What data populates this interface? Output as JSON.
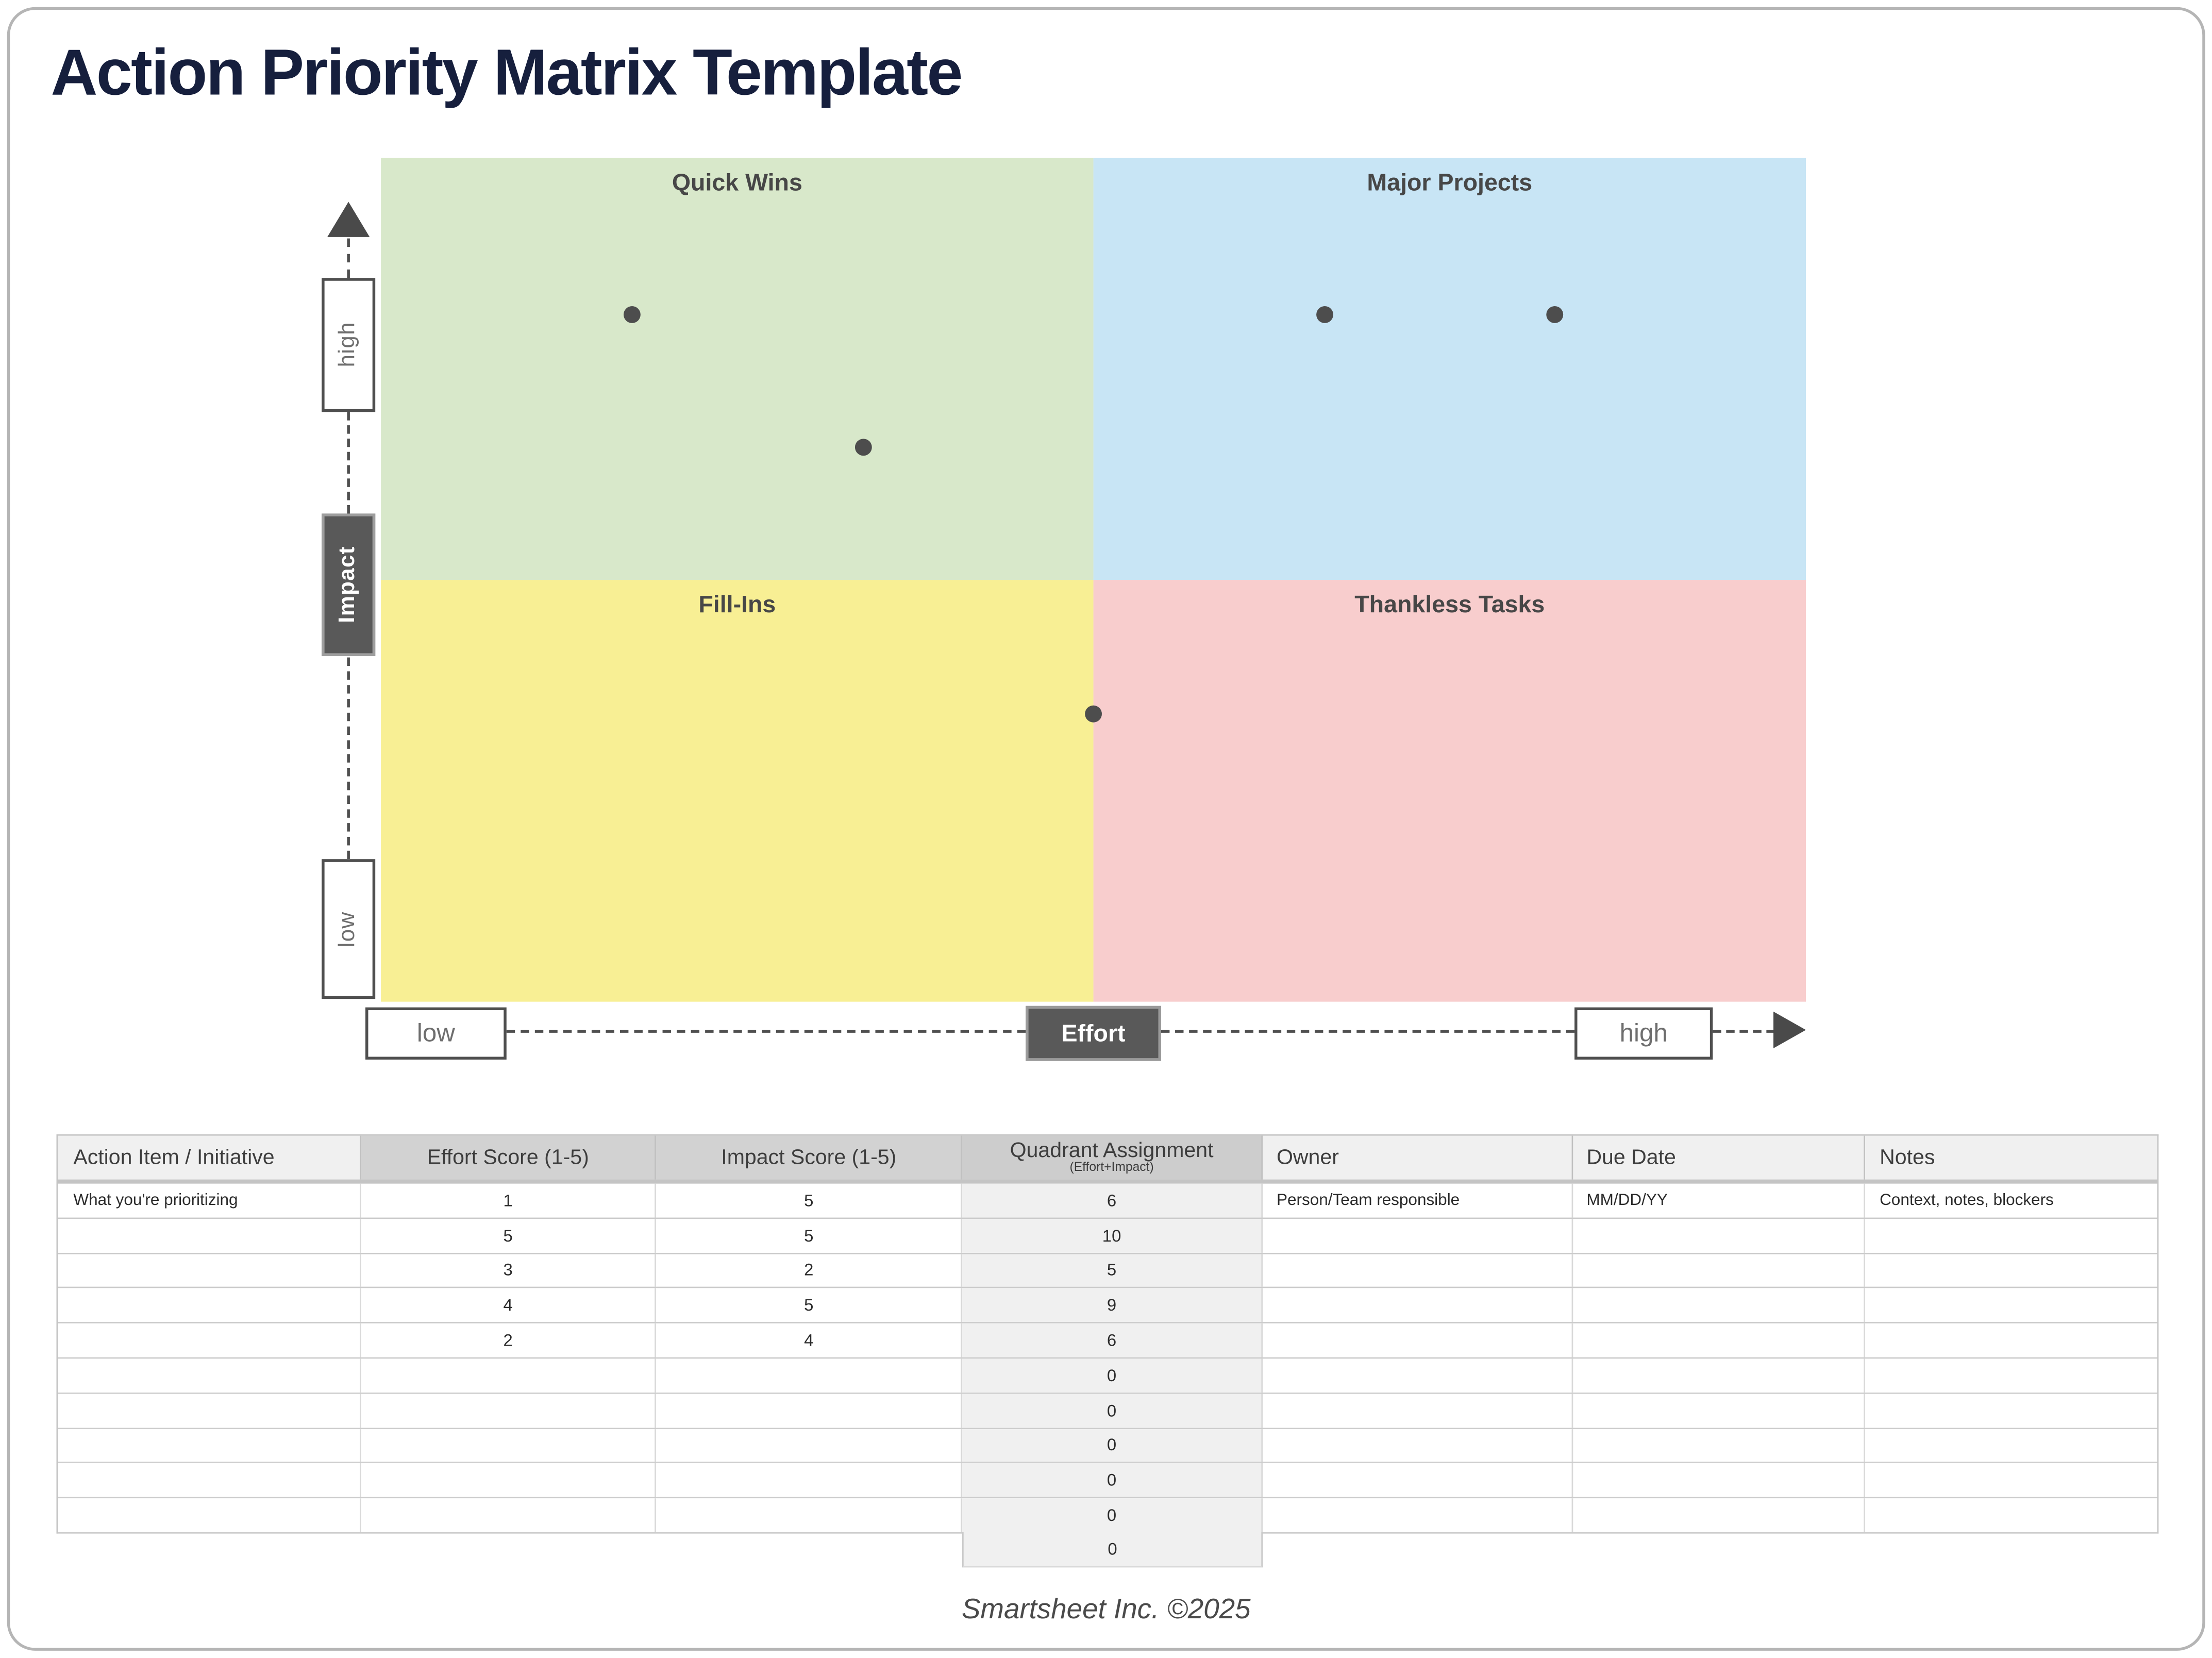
{
  "page": {
    "title": "Action Priority Matrix Template",
    "footer": "Smartsheet Inc. ©2025"
  },
  "colors": {
    "title_navy": "#161f3d",
    "axis_dark_gray": "#595959",
    "dot_gray": "#4d4d4d",
    "quadrant_green": "#d8e8ca",
    "quadrant_blue": "#c8e5f5",
    "quadrant_yellow": "#f8ef94",
    "quadrant_pink": "#f8cdcd",
    "header_gray": "#d2d2d2",
    "header_light": "#f0f0f0"
  },
  "chart_data": {
    "type": "scatter",
    "title": "",
    "quadrants": [
      {
        "name": "Quick Wins",
        "color": "#d8e8ca",
        "position": "top-left"
      },
      {
        "name": "Major Projects",
        "color": "#c8e5f5",
        "position": "top-right"
      },
      {
        "name": "Fill-Ins",
        "color": "#f8ef94",
        "position": "bottom-left"
      },
      {
        "name": "Thankless Tasks",
        "color": "#f8cdcd",
        "position": "bottom-right"
      }
    ],
    "x_axis": {
      "label": "Effort",
      "low_label": "low",
      "high_label": "high",
      "range": [
        0,
        6
      ]
    },
    "y_axis": {
      "label": "Impact",
      "low_label": "low",
      "high_label": "high",
      "range": [
        0,
        6
      ]
    },
    "points": [
      {
        "effort": 1,
        "impact": 5
      },
      {
        "effort": 5,
        "impact": 5
      },
      {
        "effort": 3,
        "impact": 2
      },
      {
        "effort": 4,
        "impact": 5
      },
      {
        "effort": 2,
        "impact": 4
      }
    ],
    "dot_color": "#4d4d4d"
  },
  "table": {
    "headers": [
      "Action Item / Initiative",
      "Effort Score (1-5)",
      "Impact Score (1-5)",
      "Quadrant Assignment",
      "Owner",
      "Due Date",
      "Notes"
    ],
    "quadrant_subheader": "(Effort+Impact)",
    "rows": [
      [
        "What you're prioritizing",
        "1",
        "5",
        "6",
        "Person/Team responsible",
        "MM/DD/YY",
        "Context, notes, blockers"
      ],
      [
        "",
        "5",
        "5",
        "10",
        "",
        "",
        ""
      ],
      [
        "",
        "3",
        "2",
        "5",
        "",
        "",
        ""
      ],
      [
        "",
        "4",
        "5",
        "9",
        "",
        "",
        ""
      ],
      [
        "",
        "2",
        "4",
        "6",
        "",
        "",
        ""
      ],
      [
        "",
        "",
        "",
        "0",
        "",
        "",
        ""
      ],
      [
        "",
        "",
        "",
        "0",
        "",
        "",
        ""
      ],
      [
        "",
        "",
        "",
        "0",
        "",
        "",
        ""
      ],
      [
        "",
        "",
        "",
        "0",
        "",
        "",
        ""
      ],
      [
        "",
        "",
        "",
        "0",
        "",
        "",
        ""
      ]
    ],
    "overflow_cell": "0"
  }
}
